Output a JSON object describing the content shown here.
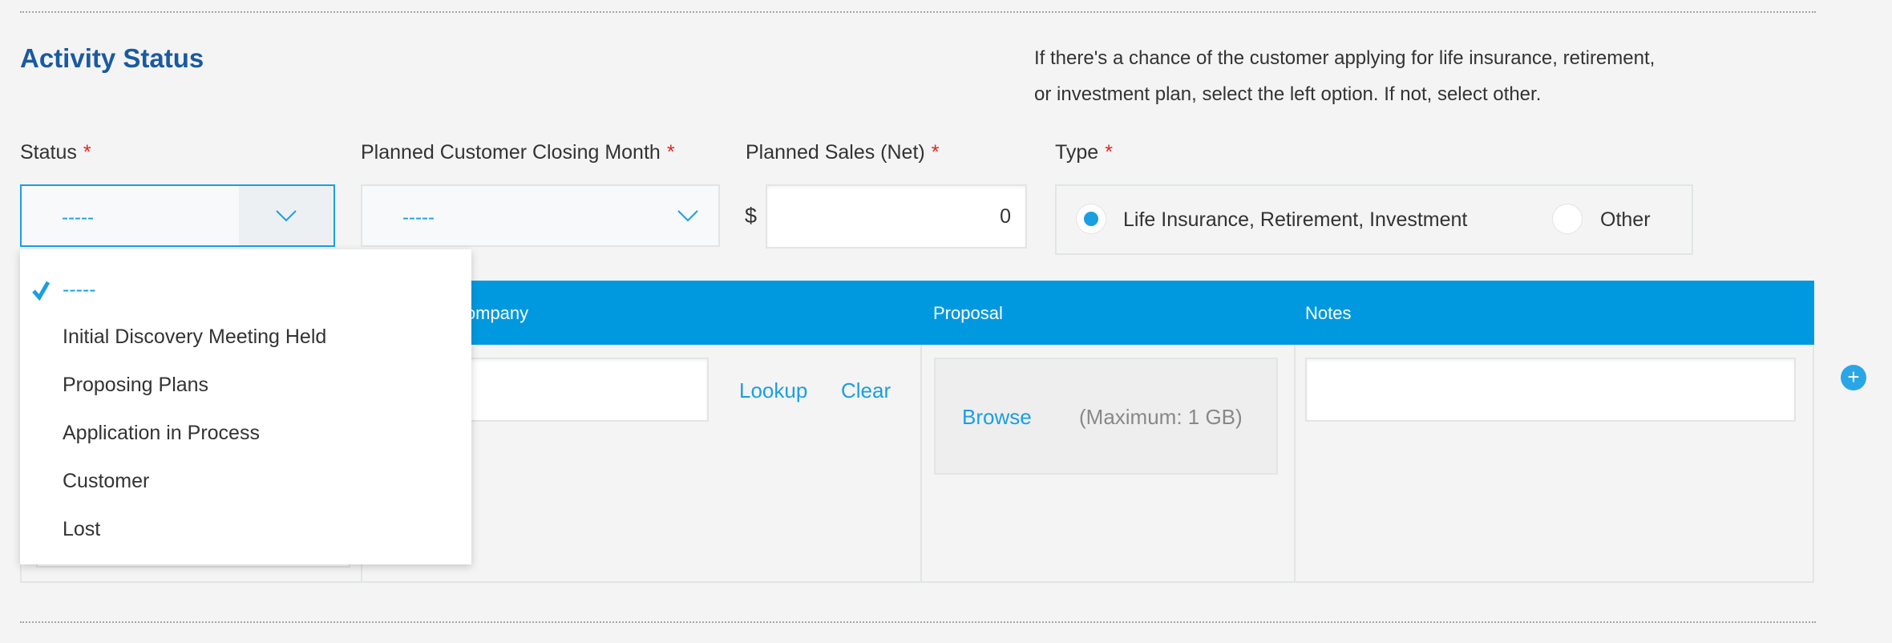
{
  "section": {
    "title": "Activity Status",
    "description_line1": "If there's a chance of the customer applying for life insurance, retirement,",
    "description_line2": "or investment plan, select the left option. If not, select other."
  },
  "fields": {
    "status": {
      "label": "Status",
      "required_mark": "*",
      "value": "-----"
    },
    "closing_month": {
      "label": "Planned Customer Closing Month",
      "required_mark": "*",
      "value": "-----"
    },
    "planned_sales": {
      "label": "Planned Sales (Net)",
      "required_mark": "*",
      "currency": "$",
      "value": "0"
    },
    "type": {
      "label": "Type",
      "required_mark": "*",
      "options": [
        "Life Insurance, Retirement, Investment",
        "Other"
      ],
      "selected": "Life Insurance, Retirement, Investment"
    }
  },
  "status_dropdown": {
    "options": [
      "-----",
      "Initial Discovery Meeting Held",
      "Proposing Plans",
      "Application in Process",
      "Customer",
      "Lost"
    ],
    "selected": "-----"
  },
  "table": {
    "headers": [
      "",
      "Company",
      "Proposal",
      "Notes"
    ],
    "company_partial_header": "ompany",
    "lookup_label": "Lookup",
    "clear_label": "Clear",
    "browse_label": "Browse",
    "max_size_label": "(Maximum: 1 GB)",
    "add_row_icon": "plus-circle-icon"
  },
  "colors": {
    "accent": "#0099e0",
    "title": "#1a5aa0",
    "required": "#e5231b"
  }
}
